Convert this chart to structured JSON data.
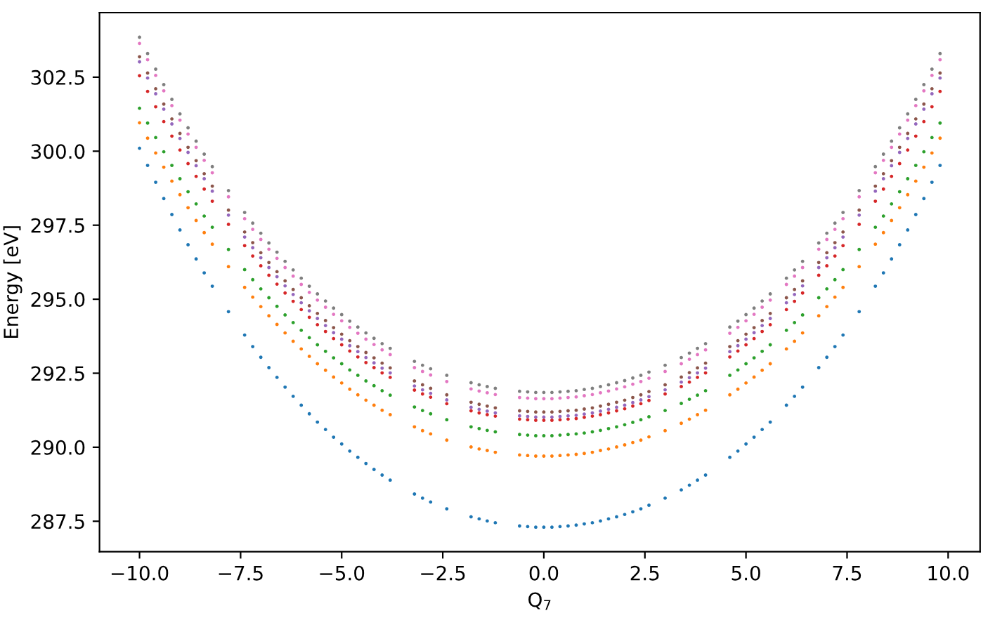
{
  "chart_data": {
    "type": "scatter",
    "xlabel": "Q$_{7}$",
    "ylabel": "Energy [eV]",
    "x": [
      -10,
      -9.8,
      -9.6,
      -9.4,
      -9.2,
      -9.0,
      -8.8,
      -8.6,
      -8.4,
      -8.2,
      -7.8,
      -7.4,
      -7.2,
      -7.0,
      -6.8,
      -6.6,
      -6.4,
      -6.2,
      -6.0,
      -5.8,
      -5.6,
      -5.4,
      -5.2,
      -5.0,
      -4.8,
      -4.6,
      -4.4,
      -4.2,
      -4.0,
      -3.8,
      -3.2,
      -3.0,
      -2.8,
      -2.4,
      -1.8,
      -1.6,
      -1.4,
      -1.2,
      -0.6,
      -0.4,
      -0.2,
      0.0,
      0.2,
      0.4,
      0.6,
      0.8,
      1.0,
      1.2,
      1.4,
      1.6,
      1.8,
      2.0,
      2.2,
      2.4,
      2.6,
      3.0,
      3.4,
      3.6,
      3.8,
      4.0,
      4.6,
      4.8,
      5.0,
      5.2,
      5.4,
      5.6,
      6.0,
      6.2,
      6.4,
      6.8,
      7.0,
      7.2,
      7.4,
      7.8,
      8.2,
      8.4,
      8.6,
      8.8,
      9.0,
      9.2,
      9.4,
      9.6,
      9.8
    ],
    "xlim": [
      -10.99,
      10.79
    ],
    "xticks": [
      {
        "value": -10,
        "label": "−10.0"
      },
      {
        "value": -7.5,
        "label": "−7.5"
      },
      {
        "value": -5,
        "label": "−5.0"
      },
      {
        "value": -2.5,
        "label": "−2.5"
      },
      {
        "value": 0,
        "label": "0.0"
      },
      {
        "value": 2.5,
        "label": "2.5"
      },
      {
        "value": 5,
        "label": "5.0"
      },
      {
        "value": 7.5,
        "label": "7.5"
      },
      {
        "value": 10,
        "label": "10.0"
      }
    ],
    "ylim": [
      286.47,
      304.68
    ],
    "yticks": [
      {
        "value": 287.5,
        "label": "287.5"
      },
      {
        "value": 290,
        "label": "290.0"
      },
      {
        "value": 292.5,
        "label": "292.5"
      },
      {
        "value": 295,
        "label": "295.0"
      },
      {
        "value": 297.5,
        "label": "297.5"
      },
      {
        "value": 300,
        "label": "300.0"
      },
      {
        "value": 302.5,
        "label": "302.5"
      }
    ],
    "grid": false,
    "marker": "circle",
    "series": [
      {
        "color": "#1f77b4",
        "values": [
          300.1,
          299.52,
          298.95,
          298.4,
          297.86,
          297.34,
          296.84,
          296.36,
          295.89,
          295.44,
          294.58,
          293.79,
          293.4,
          293.04,
          292.69,
          292.36,
          292.03,
          291.72,
          291.42,
          291.13,
          290.85,
          290.6,
          290.34,
          290.11,
          289.87,
          289.66,
          289.45,
          289.25,
          289.06,
          288.89,
          288.42,
          288.28,
          288.15,
          287.92,
          287.65,
          287.58,
          287.51,
          287.45,
          287.34,
          287.32,
          287.3,
          287.3,
          287.3,
          287.32,
          287.34,
          287.37,
          287.41,
          287.45,
          287.51,
          287.58,
          287.65,
          287.73,
          287.82,
          287.92,
          288.04,
          288.28,
          288.56,
          288.72,
          288.89,
          289.06,
          289.66,
          289.87,
          290.11,
          290.34,
          290.6,
          290.85,
          291.42,
          291.72,
          292.03,
          292.69,
          293.04,
          293.4,
          293.79,
          294.58,
          295.44,
          295.89,
          296.36,
          296.84,
          297.34,
          297.86,
          298.4,
          298.95,
          299.52
        ]
      },
      {
        "color": "#ff7f0e",
        "values": [
          300.96,
          300.44,
          299.94,
          299.46,
          298.99,
          298.53,
          298.09,
          297.66,
          297.25,
          296.86,
          296.1,
          295.4,
          295.07,
          294.75,
          294.44,
          294.15,
          293.86,
          293.58,
          293.32,
          293.07,
          292.82,
          292.6,
          292.37,
          292.17,
          291.96,
          291.77,
          291.59,
          291.42,
          291.25,
          291.1,
          290.69,
          290.56,
          290.45,
          290.24,
          290.01,
          289.94,
          289.89,
          289.83,
          289.74,
          289.72,
          289.7,
          289.7,
          289.7,
          289.72,
          289.74,
          289.76,
          289.79,
          289.83,
          289.89,
          289.94,
          290.01,
          290.08,
          290.16,
          290.24,
          290.35,
          290.56,
          290.81,
          290.95,
          291.1,
          291.25,
          291.77,
          291.96,
          292.17,
          292.37,
          292.6,
          292.82,
          293.32,
          293.58,
          293.86,
          294.44,
          294.75,
          295.07,
          295.4,
          296.1,
          296.86,
          297.25,
          297.66,
          298.09,
          298.53,
          298.99,
          299.46,
          299.94,
          300.44
        ]
      },
      {
        "color": "#2ca02c",
        "values": [
          301.45,
          300.95,
          300.46,
          299.98,
          299.52,
          299.07,
          298.63,
          298.22,
          297.81,
          297.43,
          296.68,
          296.0,
          295.66,
          295.35,
          295.05,
          294.76,
          294.47,
          294.21,
          293.95,
          293.7,
          293.46,
          293.24,
          293.02,
          292.82,
          292.61,
          292.43,
          292.24,
          292.08,
          291.91,
          291.76,
          291.36,
          291.24,
          291.13,
          290.93,
          290.69,
          290.63,
          290.57,
          290.52,
          290.43,
          290.41,
          290.39,
          290.39,
          290.39,
          290.41,
          290.43,
          290.45,
          290.48,
          290.52,
          290.57,
          290.63,
          290.69,
          290.76,
          290.84,
          290.93,
          291.03,
          291.24,
          291.48,
          291.62,
          291.76,
          291.91,
          292.43,
          292.61,
          292.82,
          293.02,
          293.24,
          293.46,
          293.95,
          294.21,
          294.47,
          295.05,
          295.35,
          295.66,
          296.0,
          296.68,
          297.43,
          297.81,
          298.22,
          298.63,
          299.07,
          299.52,
          299.98,
          300.46,
          300.95
        ]
      },
      {
        "color": "#d62728",
        "values": [
          302.55,
          302.02,
          301.5,
          301.0,
          300.51,
          300.04,
          299.58,
          299.15,
          298.72,
          298.31,
          297.53,
          296.81,
          296.46,
          296.13,
          295.81,
          295.51,
          295.21,
          294.93,
          294.65,
          294.39,
          294.14,
          293.91,
          293.67,
          293.46,
          293.25,
          293.05,
          292.86,
          292.69,
          292.51,
          292.36,
          291.93,
          291.8,
          291.69,
          291.47,
          291.23,
          291.16,
          291.1,
          291.05,
          290.95,
          290.93,
          290.91,
          290.91,
          290.91,
          290.93,
          290.95,
          290.97,
          291.01,
          291.05,
          291.1,
          291.16,
          291.23,
          291.3,
          291.39,
          291.47,
          291.58,
          291.8,
          292.05,
          292.2,
          292.36,
          292.51,
          293.05,
          293.25,
          293.46,
          293.67,
          293.91,
          294.14,
          294.65,
          294.93,
          295.21,
          295.81,
          296.13,
          296.46,
          296.81,
          297.53,
          298.31,
          298.72,
          299.15,
          299.58,
          300.04,
          300.51,
          301.0,
          301.5,
          302.02
        ]
      },
      {
        "color": "#9467bd",
        "values": [
          303.02,
          302.47,
          301.94,
          301.42,
          300.92,
          300.43,
          299.96,
          299.51,
          299.07,
          298.65,
          297.84,
          297.1,
          296.74,
          296.4,
          296.07,
          295.76,
          295.45,
          295.16,
          294.88,
          294.61,
          294.35,
          294.11,
          293.87,
          293.65,
          293.43,
          293.23,
          293.03,
          292.85,
          292.67,
          292.51,
          292.07,
          291.94,
          291.82,
          291.6,
          291.35,
          291.28,
          291.22,
          291.16,
          291.06,
          291.04,
          291.02,
          291.02,
          291.02,
          291.04,
          291.06,
          291.08,
          291.12,
          291.16,
          291.22,
          291.28,
          291.35,
          291.42,
          291.51,
          291.6,
          291.71,
          291.94,
          292.2,
          292.35,
          292.51,
          292.67,
          293.23,
          293.43,
          293.65,
          293.87,
          294.11,
          294.35,
          294.88,
          295.16,
          295.45,
          296.07,
          296.4,
          296.74,
          297.1,
          297.84,
          298.65,
          299.07,
          299.51,
          299.96,
          300.43,
          300.92,
          301.42,
          301.94,
          302.47
        ]
      },
      {
        "color": "#8c564b",
        "values": [
          303.19,
          302.64,
          302.11,
          301.59,
          301.09,
          300.6,
          300.13,
          299.68,
          299.24,
          298.82,
          298.01,
          297.27,
          296.91,
          296.57,
          296.24,
          295.93,
          295.62,
          295.33,
          295.05,
          294.78,
          294.52,
          294.28,
          294.04,
          293.82,
          293.6,
          293.4,
          293.2,
          293.02,
          292.84,
          292.68,
          292.24,
          292.11,
          291.99,
          291.77,
          291.52,
          291.45,
          291.39,
          291.33,
          291.23,
          291.21,
          291.19,
          291.19,
          291.19,
          291.21,
          291.23,
          291.25,
          291.29,
          291.33,
          291.39,
          291.45,
          291.52,
          291.59,
          291.68,
          291.77,
          291.88,
          292.11,
          292.37,
          292.52,
          292.68,
          292.84,
          293.4,
          293.6,
          293.82,
          294.04,
          294.28,
          294.52,
          295.05,
          295.33,
          295.62,
          296.24,
          296.57,
          296.91,
          297.27,
          298.01,
          298.82,
          299.24,
          299.68,
          300.13,
          300.6,
          301.09,
          301.59,
          302.11,
          302.64
        ]
      },
      {
        "color": "#e377c2",
        "values": [
          303.64,
          303.09,
          302.56,
          302.04,
          301.54,
          301.05,
          300.58,
          300.13,
          299.69,
          299.27,
          298.46,
          297.72,
          297.36,
          297.02,
          296.69,
          296.38,
          296.07,
          295.78,
          295.5,
          295.23,
          294.97,
          294.73,
          294.49,
          294.27,
          294.05,
          293.85,
          293.65,
          293.47,
          293.29,
          293.13,
          292.69,
          292.56,
          292.44,
          292.22,
          291.97,
          291.9,
          291.84,
          291.78,
          291.68,
          291.66,
          291.64,
          291.64,
          291.64,
          291.66,
          291.68,
          291.7,
          291.74,
          291.78,
          291.84,
          291.9,
          291.97,
          292.04,
          292.13,
          292.22,
          292.33,
          292.56,
          292.82,
          292.97,
          293.13,
          293.29,
          293.85,
          294.05,
          294.27,
          294.49,
          294.73,
          294.97,
          295.5,
          295.78,
          296.07,
          296.69,
          297.02,
          297.36,
          297.72,
          298.46,
          299.27,
          299.69,
          300.13,
          300.58,
          301.05,
          301.54,
          302.04,
          302.56,
          303.09
        ]
      },
      {
        "color": "#7f7f7f",
        "values": [
          303.85,
          303.3,
          302.77,
          302.25,
          301.75,
          301.26,
          300.79,
          300.34,
          299.9,
          299.48,
          298.67,
          297.93,
          297.57,
          297.23,
          296.9,
          296.59,
          296.28,
          295.99,
          295.71,
          295.44,
          295.18,
          294.94,
          294.7,
          294.48,
          294.26,
          294.06,
          293.86,
          293.68,
          293.5,
          293.34,
          292.9,
          292.77,
          292.65,
          292.43,
          292.18,
          292.11,
          292.05,
          291.99,
          291.89,
          291.87,
          291.85,
          291.85,
          291.85,
          291.87,
          291.89,
          291.91,
          291.95,
          291.99,
          292.05,
          292.11,
          292.18,
          292.25,
          292.34,
          292.43,
          292.54,
          292.77,
          293.03,
          293.18,
          293.34,
          293.5,
          294.06,
          294.26,
          294.48,
          294.7,
          294.94,
          295.18,
          295.71,
          295.99,
          296.28,
          296.9,
          297.23,
          297.57,
          297.93,
          298.67,
          299.48,
          299.9,
          300.34,
          300.79,
          301.26,
          301.75,
          302.25,
          302.77,
          303.3
        ]
      }
    ]
  }
}
